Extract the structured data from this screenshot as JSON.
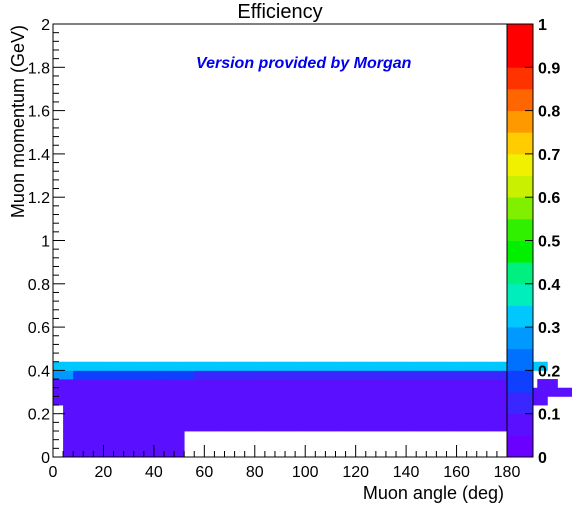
{
  "chart_data": {
    "type": "heatmap",
    "title": "Efficiency",
    "xlabel": "Muon angle (deg)",
    "ylabel": "Muon momentum (GeV)",
    "annotation": "Version provided by Morgan",
    "xlim": [
      0,
      180
    ],
    "ylim": [
      0,
      2
    ],
    "zlim": [
      0,
      1
    ],
    "x_ticks": [
      "0",
      "20",
      "40",
      "60",
      "80",
      "100",
      "120",
      "140",
      "160",
      "180"
    ],
    "y_ticks": [
      "0",
      "0.2",
      "0.4",
      "0.6",
      "0.8",
      "1",
      "1.2",
      "1.4",
      "1.6",
      "1.8",
      "2"
    ],
    "z_ticks": [
      "0",
      "0.1",
      "0.2",
      "0.3",
      "0.4",
      "0.5",
      "0.6",
      "0.7",
      "0.8",
      "0.9",
      "1"
    ],
    "bin_width_x": 4,
    "bin_width_y": 0.04,
    "rows": [
      {
        "y": 0.0,
        "x0": 4,
        "values": [
          0.06,
          0.06,
          0.06,
          0.06,
          0.06,
          0.06,
          0.06,
          0.06,
          0.06,
          0.06,
          0.06,
          0.06
        ]
      },
      {
        "y": 0.04,
        "x0": 4,
        "values": [
          0.06,
          0.06,
          0.06,
          0.06,
          0.06,
          0.06,
          0.06,
          0.06,
          0.06,
          0.06,
          0.06,
          0.06
        ]
      },
      {
        "y": 0.08,
        "x0": 4,
        "values": [
          0.06,
          0.06,
          0.06,
          0.06,
          0.06,
          0.06,
          0.06,
          0.06,
          0.06,
          0.06,
          0.06,
          0.06
        ]
      },
      {
        "y": 0.12,
        "x0": 4,
        "values": [
          0.06,
          0.06,
          0.06,
          0.06,
          0.06,
          0.06,
          0.06,
          0.06,
          0.06,
          0.06,
          0.06,
          0.06,
          0.06,
          0.06,
          0.06,
          0.06,
          0.06,
          0.06,
          0.06,
          0.06,
          0.06,
          0.06,
          0.06,
          0.06,
          0.06,
          0.06,
          0.06,
          0.06,
          0.06,
          0.06,
          0.06,
          0.06,
          0.06,
          0.06,
          0.06,
          0.06,
          0.06,
          0.06,
          0.06,
          0.06,
          0.06,
          0.06,
          0.06,
          0.06,
          0.06
        ]
      },
      {
        "y": 0.16,
        "x0": 4,
        "values": [
          0.06,
          0.06,
          0.06,
          0.06,
          0.06,
          0.06,
          0.06,
          0.06,
          0.06,
          0.06,
          0.06,
          0.06,
          0.06,
          0.06,
          0.06,
          0.06,
          0.06,
          0.06,
          0.06,
          0.06,
          0.06,
          0.06,
          0.06,
          0.06,
          0.06,
          0.06,
          0.06,
          0.06,
          0.06,
          0.06,
          0.06,
          0.06,
          0.06,
          0.06,
          0.06,
          0.06,
          0.06,
          0.06,
          0.06,
          0.06,
          0.06,
          0.06,
          0.06,
          0.06,
          0.06
        ]
      },
      {
        "y": 0.2,
        "x0": 4,
        "values": [
          0.06,
          0.06,
          0.06,
          0.06,
          0.06,
          0.06,
          0.06,
          0.06,
          0.06,
          0.06,
          0.06,
          0.06,
          0.06,
          0.06,
          0.06,
          0.06,
          0.06,
          0.06,
          0.06,
          0.06,
          0.06,
          0.06,
          0.06,
          0.06,
          0.06,
          0.06,
          0.06,
          0.06,
          0.06,
          0.06,
          0.06,
          0.06,
          0.06,
          0.06,
          0.06,
          0.06,
          0.06,
          0.06,
          0.06,
          0.06,
          0.06,
          0.06,
          0.06,
          0.06,
          0.06
        ]
      },
      {
        "y": 0.24,
        "x0": 0,
        "values": [
          0.06,
          0.06,
          0.06,
          0.06,
          0.06,
          0.06,
          0.06,
          0.06,
          0.06,
          0.06,
          0.06,
          0.06,
          0.06,
          0.06,
          0.06,
          0.06,
          0.06,
          0.06,
          0.06,
          0.06,
          0.06,
          0.06,
          0.06,
          0.06,
          0.06,
          0.06,
          0.06,
          0.06,
          0.06,
          0.06,
          0.06,
          0.06,
          0.06,
          0.06,
          0.06,
          0.06,
          0.06,
          0.06,
          0.06,
          0.06,
          0.06,
          0.06,
          0.06,
          0.06,
          0.06,
          0.06,
          0.06,
          0.06,
          0.06
        ]
      },
      {
        "y": 0.28,
        "x0": 0,
        "values": [
          0.06,
          0.06,
          0.06,
          0.06,
          0.06,
          0.06,
          0.06,
          0.06,
          0.06,
          0.06,
          0.06,
          0.06,
          0.06,
          0.06,
          0.06,
          0.06,
          0.06,
          0.06,
          0.06,
          0.06,
          0.06,
          0.06,
          0.06,
          0.06,
          0.06,
          0.06,
          0.06,
          0.06,
          0.06,
          0.06,
          0.06,
          0.06,
          0.06,
          0.06,
          0.06,
          0.06,
          0.06,
          0.06,
          0.06,
          0.06,
          0.06,
          0.06,
          0.06,
          0.06,
          0.06,
          0.06,
          0.06,
          0.06,
          0.06,
          0.06,
          0.06,
          0.06,
          0.06,
          0.06,
          0.06,
          0.06,
          0.06,
          0.06,
          0.06,
          0.06,
          0.06,
          0.06,
          0.06,
          0.06,
          0.06,
          null,
          null,
          null,
          null,
          null,
          null,
          null,
          null,
          null,
          null,
          null,
          null,
          null,
          null,
          null,
          null,
          null,
          null,
          null,
          null,
          null,
          null,
          null,
          null,
          null,
          null,
          null,
          null,
          null,
          null,
          null,
          null,
          null,
          null
        ]
      },
      {
        "y": 0.32,
        "x0": 0,
        "values": [
          0.06,
          0.06,
          0.06,
          0.06,
          0.06,
          0.06,
          0.06,
          0.06,
          0.06,
          0.06,
          0.06,
          0.06,
          0.06,
          0.06,
          0.06,
          0.06,
          0.06,
          0.06,
          0.06,
          0.06,
          0.06,
          0.06,
          0.06,
          0.06,
          0.06,
          0.06,
          0.06,
          0.06,
          0.06,
          0.06,
          0.06,
          0.06,
          0.06,
          0.06,
          0.06,
          0.06,
          0.06,
          0.06,
          0.06,
          0.06,
          0.06,
          0.06,
          0.06,
          0.06,
          0.06,
          0.06,
          0.06,
          null,
          0.06,
          0.06
        ]
      },
      {
        "y": 0.36,
        "x0": 0,
        "values": [
          0.25,
          0.25,
          0.15,
          0.15,
          0.15,
          0.15,
          0.15,
          0.15,
          0.15,
          0.15,
          0.15,
          0.15,
          0.15,
          0.15,
          0.12,
          0.12,
          0.12,
          0.12,
          0.12,
          0.12,
          0.12,
          0.12,
          0.12,
          0.12,
          0.12,
          0.12,
          0.12,
          0.12,
          0.12,
          0.12,
          0.12,
          0.12,
          0.12,
          0.12,
          0.12,
          0.12,
          0.12,
          0.12,
          0.12,
          0.12,
          0.12,
          0.12,
          0.12,
          0.12,
          0.12
        ]
      },
      {
        "y": 0.4,
        "x0": 0,
        "values": [
          0.3,
          0.3,
          0.3,
          0.3,
          0.3,
          0.3,
          0.3,
          0.3,
          0.3,
          0.3,
          0.3,
          0.3,
          0.3,
          0.3,
          0.3,
          0.3,
          0.3,
          0.3,
          0.3,
          0.3,
          0.3,
          0.3,
          0.3,
          0.3,
          0.3,
          0.3,
          0.3,
          0.3,
          0.3,
          0.3,
          0.3,
          0.3,
          0.3,
          0.3,
          0.3,
          0.3,
          0.3,
          0.3,
          0.3,
          0.3,
          0.3,
          0.3,
          0.3,
          0.3,
          0.3,
          0.3,
          0.3,
          0.3,
          0.3
        ]
      }
    ]
  }
}
